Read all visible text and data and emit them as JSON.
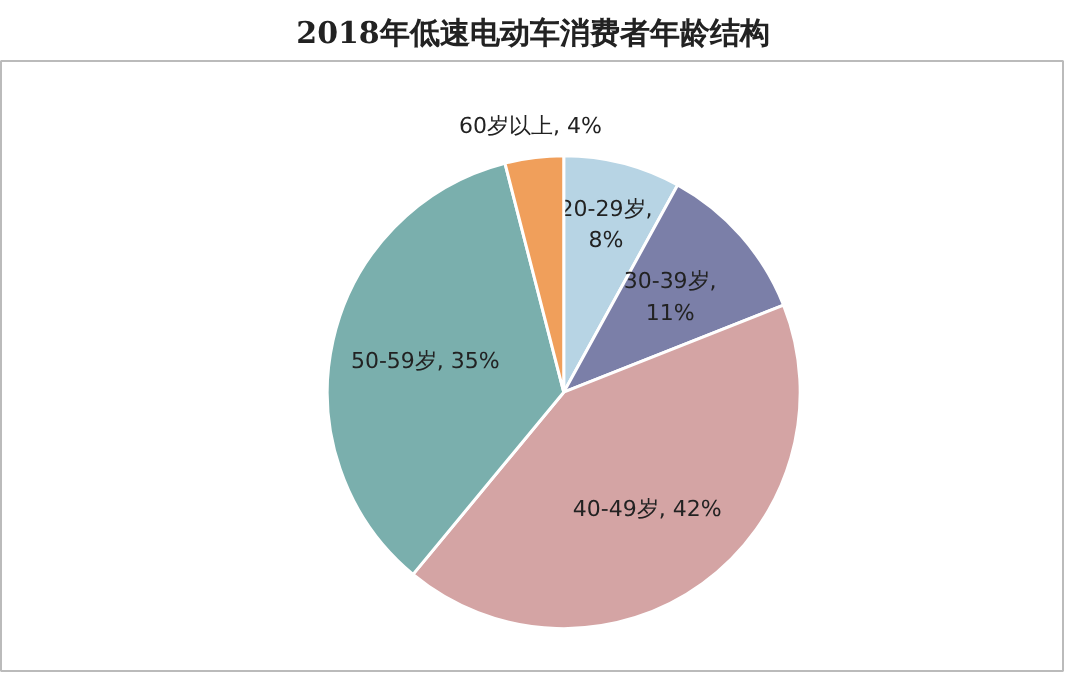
{
  "chart_data": {
    "type": "pie",
    "title": "2018年低速电动车消费者年龄结构",
    "categories": [
      "20-29岁",
      "30-39岁",
      "40-49岁",
      "50-59岁",
      "60岁以上"
    ],
    "values": [
      8,
      11,
      42,
      35,
      4
    ],
    "colors": [
      "#b7d4e4",
      "#7b7fa8",
      "#d4a4a4",
      "#7aafad",
      "#f09f5b"
    ],
    "value_labels": [
      ", 8%",
      ", 11%",
      ", 42%",
      ", 35%",
      ", 4%"
    ]
  }
}
